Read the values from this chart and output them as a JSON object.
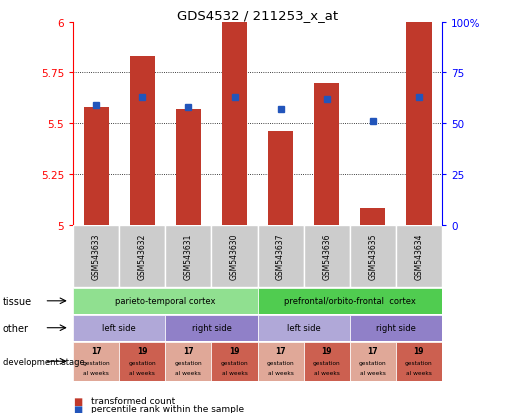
{
  "title": "GDS4532 / 211253_x_at",
  "samples": [
    "GSM543633",
    "GSM543632",
    "GSM543631",
    "GSM543630",
    "GSM543637",
    "GSM543636",
    "GSM543635",
    "GSM543634"
  ],
  "bar_values": [
    5.58,
    5.83,
    5.57,
    6.0,
    5.46,
    5.7,
    5.08,
    6.0
  ],
  "dot_values": [
    5.59,
    5.63,
    5.58,
    5.63,
    5.57,
    5.62,
    5.51,
    5.63
  ],
  "ymin": 5.0,
  "ymax": 6.0,
  "yticks_left": [
    5.0,
    5.25,
    5.5,
    5.75,
    6.0
  ],
  "ytick_left_labels": [
    "5",
    "5.25",
    "5.5",
    "5.75",
    "6"
  ],
  "ytick_right_labels": [
    "0",
    "25",
    "50",
    "75",
    "100%"
  ],
  "bar_color": "#c0392b",
  "dot_color": "#2255bb",
  "bar_width": 0.55,
  "tissue_groups": [
    {
      "label": "parieto-temporal cortex",
      "start": 0,
      "end": 4,
      "color": "#90e090"
    },
    {
      "label": "prefrontal/orbito-frontal  cortex",
      "start": 4,
      "end": 8,
      "color": "#50cc50"
    }
  ],
  "other_groups": [
    {
      "label": "left side",
      "start": 0,
      "end": 2,
      "color": "#b0a8d8"
    },
    {
      "label": "right side",
      "start": 2,
      "end": 4,
      "color": "#9080c8"
    },
    {
      "label": "left side",
      "start": 4,
      "end": 6,
      "color": "#b0a8d8"
    },
    {
      "label": "right side",
      "start": 6,
      "end": 8,
      "color": "#9080c8"
    }
  ],
  "dev_cells": [
    {
      "num": "17",
      "color": "#e0a898"
    },
    {
      "num": "19",
      "color": "#cc6050"
    },
    {
      "num": "17",
      "color": "#e0a898"
    },
    {
      "num": "19",
      "color": "#cc6050"
    },
    {
      "num": "17",
      "color": "#e0a898"
    },
    {
      "num": "19",
      "color": "#cc6050"
    },
    {
      "num": "17",
      "color": "#e0a898"
    },
    {
      "num": "19",
      "color": "#cc6050"
    }
  ],
  "row_labels": [
    "tissue",
    "other",
    "development stage"
  ],
  "legend_items": [
    {
      "color": "#c0392b",
      "label": "transformed count"
    },
    {
      "color": "#2255bb",
      "label": "percentile rank within the sample"
    }
  ]
}
